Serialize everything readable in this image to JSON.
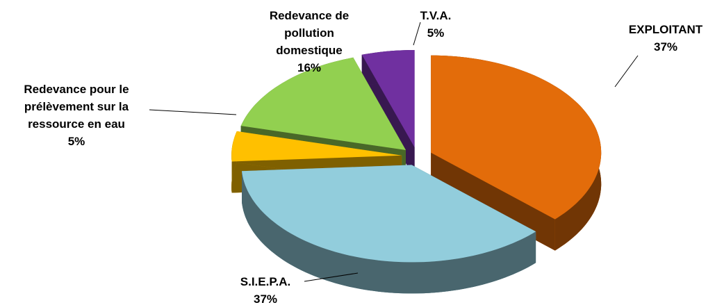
{
  "chart_data": {
    "type": "pie",
    "categories": [
      "EXPLOITANT",
      "S.I.E.P.A.",
      "Redevance pour le prélèvement sur la ressource en eau",
      "Redevance de pollution domestique",
      "T.V.A."
    ],
    "values": [
      37,
      37,
      5,
      16,
      5
    ],
    "value_labels": [
      "37%",
      "37%",
      "5%",
      "16%",
      "5%"
    ],
    "colors": [
      "#e36c0a",
      "#92cddc",
      "#ffc000",
      "#92d050",
      "#7030a0"
    ]
  }
}
